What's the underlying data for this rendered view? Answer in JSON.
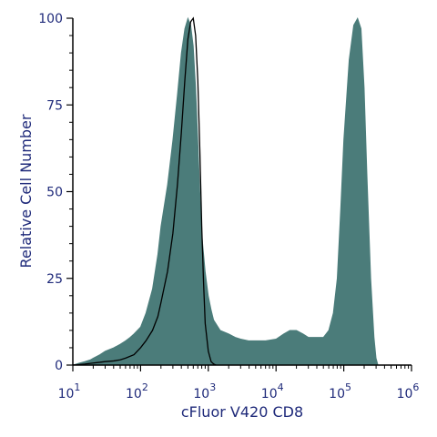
{
  "chart_data": {
    "type": "area",
    "xlabel": "cFluor V420 CD8",
    "ylabel": "Relative Cell Number",
    "x_scale": "log",
    "xlim": [
      10,
      1000000
    ],
    "ylim": [
      0,
      100
    ],
    "x_tick_labels": [
      {
        "value": 10,
        "base": "10",
        "exp": "1"
      },
      {
        "value": 100,
        "base": "10",
        "exp": "2"
      },
      {
        "value": 1000,
        "base": "10",
        "exp": "3"
      },
      {
        "value": 10000,
        "base": "10",
        "exp": "4"
      },
      {
        "value": 100000,
        "base": "10",
        "exp": "5"
      },
      {
        "value": 1000000,
        "base": "10",
        "exp": "6"
      }
    ],
    "y_tick_labels": [
      "0",
      "25",
      "50",
      "75",
      "100"
    ],
    "y_ticks": [
      0,
      25,
      50,
      75,
      100
    ],
    "grid": false,
    "colors": {
      "fill": "#4b7c7a",
      "outline": "#000000",
      "axis": "#000000",
      "text": "#1f2a7a"
    },
    "series": [
      {
        "style": "filled",
        "x": [
          10,
          12,
          15,
          18,
          20,
          25,
          30,
          40,
          50,
          60,
          70,
          80,
          100,
          120,
          150,
          180,
          200,
          250,
          300,
          350,
          400,
          450,
          500,
          550,
          600,
          650,
          700,
          750,
          800,
          900,
          1000,
          1100,
          1200,
          1500,
          2000,
          2500,
          3000,
          4000,
          5000,
          7000,
          10000,
          13000,
          16000,
          20000,
          25000,
          30000,
          40000,
          50000,
          60000,
          70000,
          80000,
          90000,
          100000,
          120000,
          140000,
          160000,
          180000,
          200000,
          220000,
          250000,
          280000,
          300000,
          320000
        ],
        "y": [
          0,
          0.5,
          1,
          1.5,
          2,
          3,
          4,
          5,
          6,
          7,
          8,
          9,
          11,
          15,
          22,
          32,
          40,
          52,
          65,
          78,
          90,
          97,
          100,
          98,
          92,
          80,
          65,
          50,
          38,
          27,
          20,
          16,
          13,
          10,
          9,
          8,
          7.5,
          7,
          7,
          7,
          7.5,
          9,
          10,
          10,
          9,
          8,
          8,
          8,
          10,
          15,
          25,
          45,
          65,
          88,
          98,
          100,
          97,
          80,
          55,
          25,
          8,
          2,
          0
        ]
      },
      {
        "style": "outline",
        "x": [
          10,
          15,
          20,
          25,
          30,
          40,
          50,
          60,
          80,
          100,
          120,
          150,
          180,
          200,
          250,
          300,
          350,
          400,
          450,
          500,
          550,
          600,
          650,
          700,
          750,
          800,
          850,
          900,
          1000,
          1100,
          1200,
          1300
        ],
        "y": [
          0,
          0.3,
          0.6,
          0.8,
          1,
          1.2,
          1.5,
          2,
          3,
          5,
          7,
          10,
          14,
          18,
          27,
          38,
          52,
          67,
          82,
          94,
          99,
          100,
          95,
          82,
          62,
          40,
          24,
          12,
          4,
          1,
          0.3,
          0
        ]
      }
    ]
  }
}
